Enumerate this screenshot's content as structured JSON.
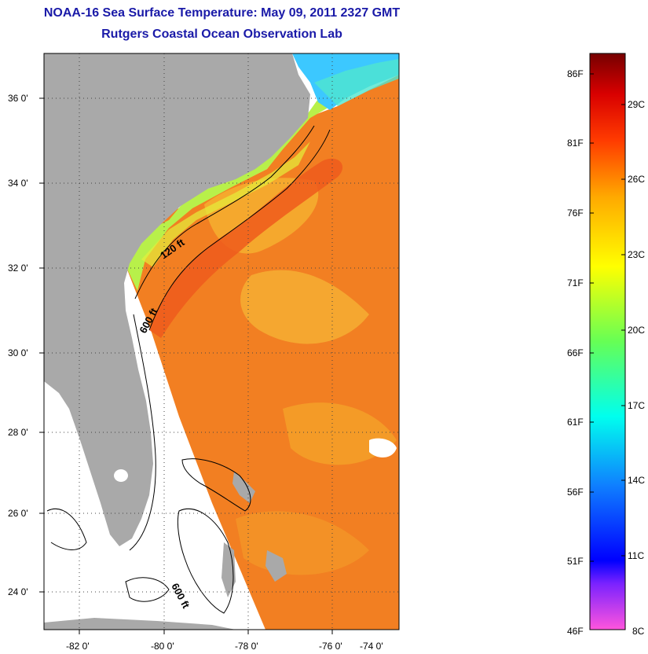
{
  "title": {
    "line1": "NOAA-16 Sea Surface Temperature:  May 09, 2011 2327 GMT",
    "line2": "Rutgers Coastal Ocean Observation Lab"
  },
  "map": {
    "lat_labels": [
      "36 0'",
      "34 0'",
      "32 0'",
      "30 0'",
      "28 0'",
      "26 0'",
      "24 0'"
    ],
    "lon_labels": [
      "-82 0'",
      "-80 0'",
      "-78 0'",
      "-76 0'",
      "-74 0'"
    ],
    "contour_labels": [
      "120 ft",
      "600 ft",
      "600 ft"
    ],
    "colors": {
      "land": "#a9a9a9",
      "ocean_warm": "#f07a1e",
      "ocean_cool": "#a8f050",
      "no_data": "#ffffff"
    }
  },
  "colorbar": {
    "fahrenheit": [
      "86F",
      "81F",
      "76F",
      "71F",
      "66F",
      "61F",
      "56F",
      "51F",
      "46F"
    ],
    "celsius": [
      "29C",
      "26C",
      "23C",
      "20C",
      "17C",
      "14C",
      "11C",
      "8C"
    ]
  }
}
